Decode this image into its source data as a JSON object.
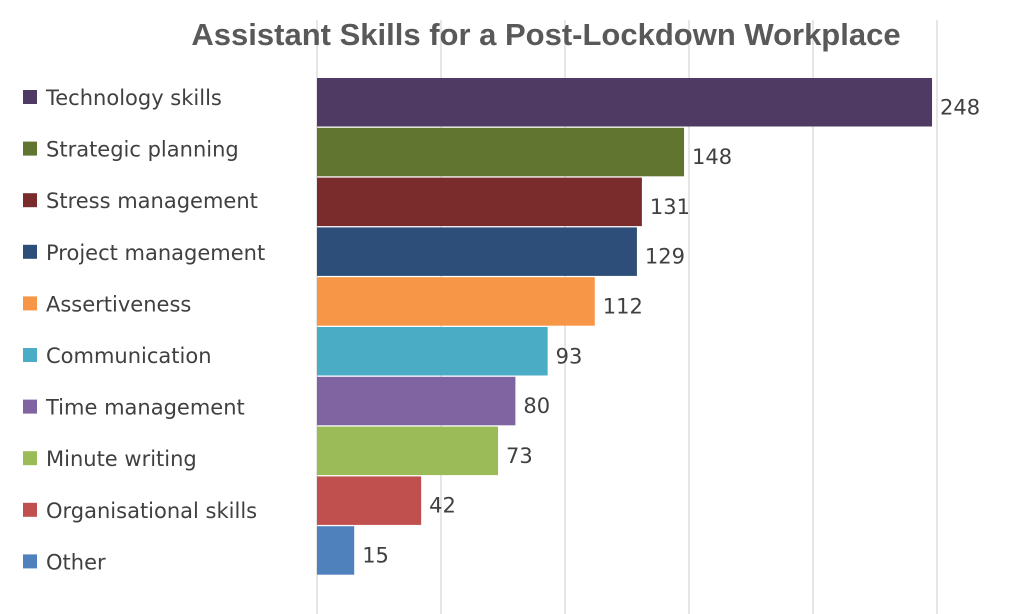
{
  "chart_data": {
    "type": "bar",
    "orientation": "horizontal",
    "title": "Assistant Skills for a Post-Lockdown Workplace",
    "categories": [
      "Technology skills",
      "Strategic planning",
      "Stress management",
      "Project management",
      "Assertiveness",
      "Communication",
      "Time management",
      "Minute writing",
      "Organisational skills",
      "Other"
    ],
    "values": [
      248,
      148,
      131,
      129,
      112,
      93,
      80,
      73,
      42,
      15
    ],
    "colors": [
      "#4e3a62",
      "#627530",
      "#7a2b2b",
      "#2d4e78",
      "#f79646",
      "#4bacc6",
      "#8064a2",
      "#9bbb59",
      "#c0504d",
      "#4f81bd"
    ],
    "xlim": [
      0,
      250
    ],
    "grid_step": 50,
    "grid": true,
    "legend_position": "left",
    "xlabel": "",
    "ylabel": ""
  }
}
